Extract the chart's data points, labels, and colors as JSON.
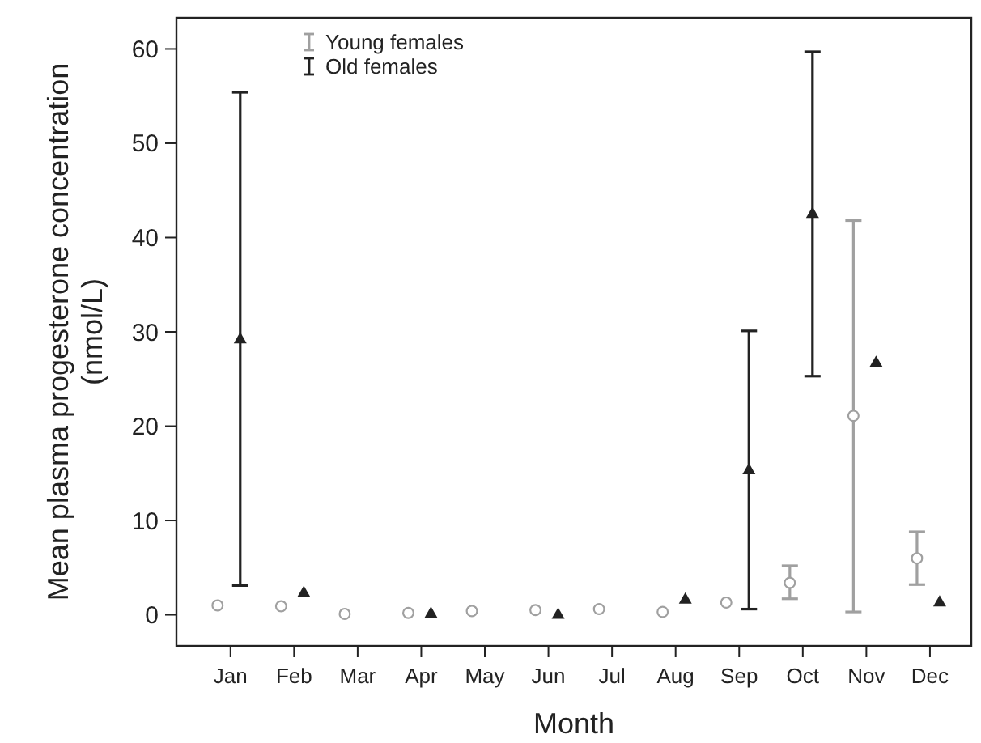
{
  "chart_data": {
    "type": "scatter",
    "xlabel": "Month",
    "ylabel": "Mean plasma progesterone concentration (nmol/L)",
    "categories": [
      "Jan",
      "Feb",
      "Mar",
      "Apr",
      "May",
      "Jun",
      "Jul",
      "Aug",
      "Sep",
      "Oct",
      "Nov",
      "Dec"
    ],
    "series": [
      {
        "name": "Young females",
        "color": "#a0a0a0",
        "marker": "circle",
        "values": [
          1.0,
          0.9,
          0.1,
          0.2,
          0.4,
          0.5,
          0.6,
          0.3,
          1.3,
          3.4,
          21.1,
          6.0
        ],
        "errors": [
          null,
          null,
          null,
          null,
          null,
          null,
          null,
          null,
          null,
          [
            1.7,
            5.2
          ],
          [
            0.3,
            41.8
          ],
          [
            3.2,
            8.8
          ]
        ]
      },
      {
        "name": "Old females",
        "color": "#222222",
        "marker": "triangle",
        "values": [
          29.3,
          2.4,
          null,
          0.2,
          null,
          0.1,
          null,
          1.7,
          15.4,
          42.6,
          26.8,
          1.4
        ],
        "errors": [
          [
            3.1,
            55.4
          ],
          null,
          null,
          null,
          null,
          null,
          null,
          null,
          [
            0.6,
            30.1
          ],
          [
            25.3,
            59.7
          ],
          null,
          null
        ]
      }
    ],
    "ylim": [
      -3.3,
      63.3
    ],
    "yticks": [
      0,
      10,
      20,
      30,
      40,
      50,
      60
    ],
    "grid": false,
    "legend": "top left"
  }
}
